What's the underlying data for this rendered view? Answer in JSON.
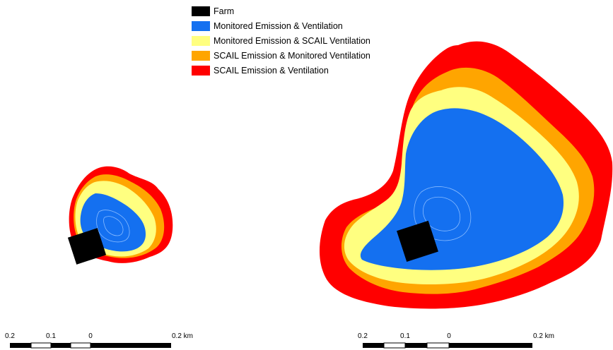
{
  "legend": {
    "items": [
      {
        "label": "Farm",
        "color": "#000000"
      },
      {
        "label": "Monitored Emission & Ventilation",
        "color": "#1470f0"
      },
      {
        "label": "Monitored Emission & SCAIL Ventilation",
        "color": "#ffff80"
      },
      {
        "label": "SCAIL Emission & Monitored Ventilation",
        "color": "#ffa500"
      },
      {
        "label": "SCAIL Emission & Ventilation",
        "color": "#ff0000"
      }
    ]
  },
  "scalebars": [
    {
      "labels": [
        "0.2",
        "0.1",
        "0",
        "0.2 km"
      ]
    },
    {
      "labels": [
        "0.2",
        "0.1",
        "0",
        "0.2 km"
      ]
    }
  ]
}
